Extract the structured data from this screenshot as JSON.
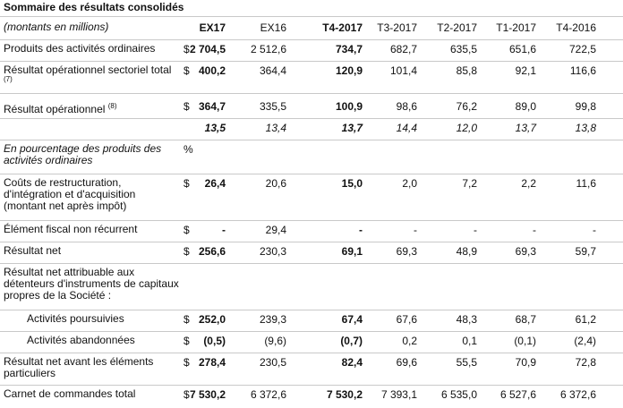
{
  "title": "Sommaire des résultats consolidés",
  "units_label": "(montants en millions)",
  "columns": [
    "EX17",
    "EX16",
    "T4-2017",
    "T3-2017",
    "T2-2017",
    "T1-2017",
    "T4-2016"
  ],
  "bold_columns": [
    0,
    2
  ],
  "rows": [
    {
      "label": "Produits des activités ordinaires",
      "currency": "$",
      "values": [
        "2 704,5",
        "2 512,6",
        "734,7",
        "682,7",
        "635,5",
        "651,6",
        "722,5"
      ]
    },
    {
      "label": "Résultat opérationnel sectoriel total",
      "footnote": "(7)",
      "currency": "$",
      "values": [
        "400,2",
        "364,4",
        "120,9",
        "101,4",
        "85,8",
        "92,1",
        "116,6"
      ]
    },
    {
      "label": "Résultat opérationnel",
      "sup": "(8)",
      "currency": "$",
      "values": [
        "364,7",
        "335,5",
        "100,9",
        "98,6",
        "76,2",
        "89,0",
        "99,8"
      ]
    },
    {
      "label": "",
      "currency": "",
      "italic": true,
      "values": [
        "13,5",
        "13,4",
        "13,7",
        "14,4",
        "12,0",
        "13,7",
        "13,8"
      ]
    },
    {
      "label": "En pourcentage des produits des activités ordinaires",
      "italic_label": true,
      "currency": "%",
      "values": [
        "",
        "",
        "",
        "",
        "",
        "",
        ""
      ]
    },
    {
      "label": "Coûts de restructuration, d'intégration et d'acquisition (montant net après impôt)",
      "currency": "$",
      "values": [
        "26,4",
        "20,6",
        "15,0",
        "2,0",
        "7,2",
        "2,2",
        "11,6"
      ]
    },
    {
      "label": "Élément fiscal non récurrent",
      "currency": "$",
      "values": [
        "-",
        "29,4",
        "-",
        "-",
        "-",
        "-",
        "-"
      ]
    },
    {
      "label": "Résultat net",
      "currency": "$",
      "values": [
        "256,6",
        "230,3",
        "69,1",
        "69,3",
        "48,9",
        "69,3",
        "59,7"
      ]
    },
    {
      "label": "Résultat net attribuable aux détenteurs d'instruments de capitaux propres de la Société :",
      "currency": "",
      "values": [
        "",
        "",
        "",
        "",
        "",
        "",
        ""
      ]
    },
    {
      "label": "Activités poursuivies",
      "indent": true,
      "currency": "$",
      "values": [
        "252,0",
        "239,3",
        "67,4",
        "67,6",
        "48,3",
        "68,7",
        "61,2"
      ]
    },
    {
      "label": "Activités abandonnées",
      "indent": true,
      "currency": "$",
      "values": [
        "(0,5)",
        "(9,6)",
        "(0,7)",
        "0,2",
        "0,1",
        "(0,1)",
        "(2,4)"
      ]
    },
    {
      "label": "Résultat net avant les éléments particuliers",
      "currency": "$",
      "values": [
        "278,4",
        "230,5",
        "82,4",
        "69,6",
        "55,5",
        "70,9",
        "72,8"
      ]
    },
    {
      "label": "Carnet de commandes total",
      "currency": "$",
      "values": [
        "7 530,2",
        "6 372,6",
        "7 530,2",
        "7 393,1",
        "6 535,0",
        "6 527,6",
        "6 372,6"
      ]
    }
  ]
}
